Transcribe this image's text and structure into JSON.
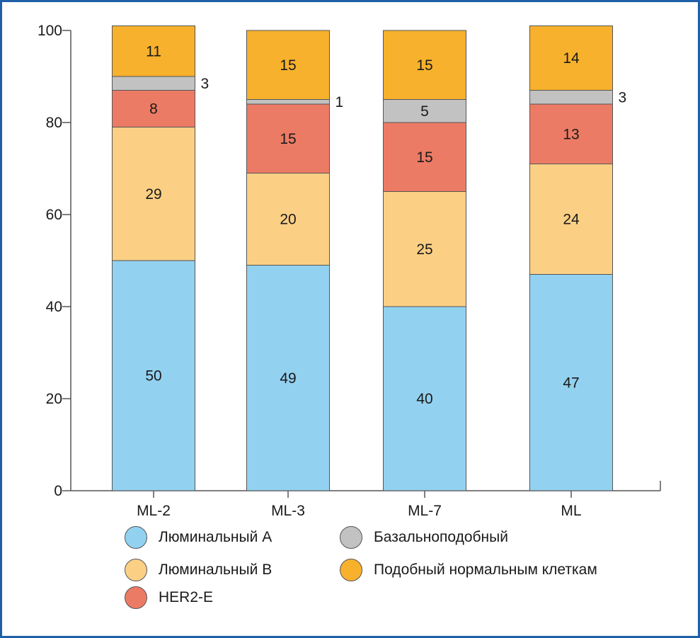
{
  "chart_data": {
    "type": "bar",
    "stacked": true,
    "categories": [
      "ML-2",
      "ML-3",
      "ML-7",
      "ML"
    ],
    "ylim": [
      0,
      100
    ],
    "yticks": [
      0,
      20,
      40,
      60,
      80,
      100
    ],
    "xlabel": "",
    "ylabel": "",
    "series": [
      {
        "name": "Люминальный А",
        "color": "#93d1f0",
        "values": [
          50,
          49,
          40,
          47
        ],
        "labels": [
          "50",
          "49",
          "40",
          "47"
        ]
      },
      {
        "name": "Люминальный В",
        "color": "#fbd085",
        "values": [
          29,
          20,
          25,
          24
        ],
        "labels": [
          "29",
          "20",
          "25",
          "24"
        ]
      },
      {
        "name": "HER2-E",
        "color": "#ec7b65",
        "values": [
          8,
          15,
          15,
          13
        ],
        "labels": [
          "8",
          "15",
          "15",
          "13"
        ]
      },
      {
        "name": "Базальноподобный",
        "color": "#c2c2c2",
        "values": [
          3,
          1,
          5,
          3
        ],
        "labels": [
          "3",
          "1",
          "5",
          "3"
        ],
        "label_outside": [
          true,
          true,
          false,
          true
        ]
      },
      {
        "name": "Подобный нормальным клеткам",
        "color": "#f7b12d",
        "values": [
          11,
          15,
          15,
          14
        ],
        "labels": [
          "11",
          "15",
          "15",
          "14"
        ]
      }
    ],
    "legend": {
      "placement": "bottom",
      "order": [
        0,
        3,
        1,
        4,
        2
      ]
    }
  }
}
